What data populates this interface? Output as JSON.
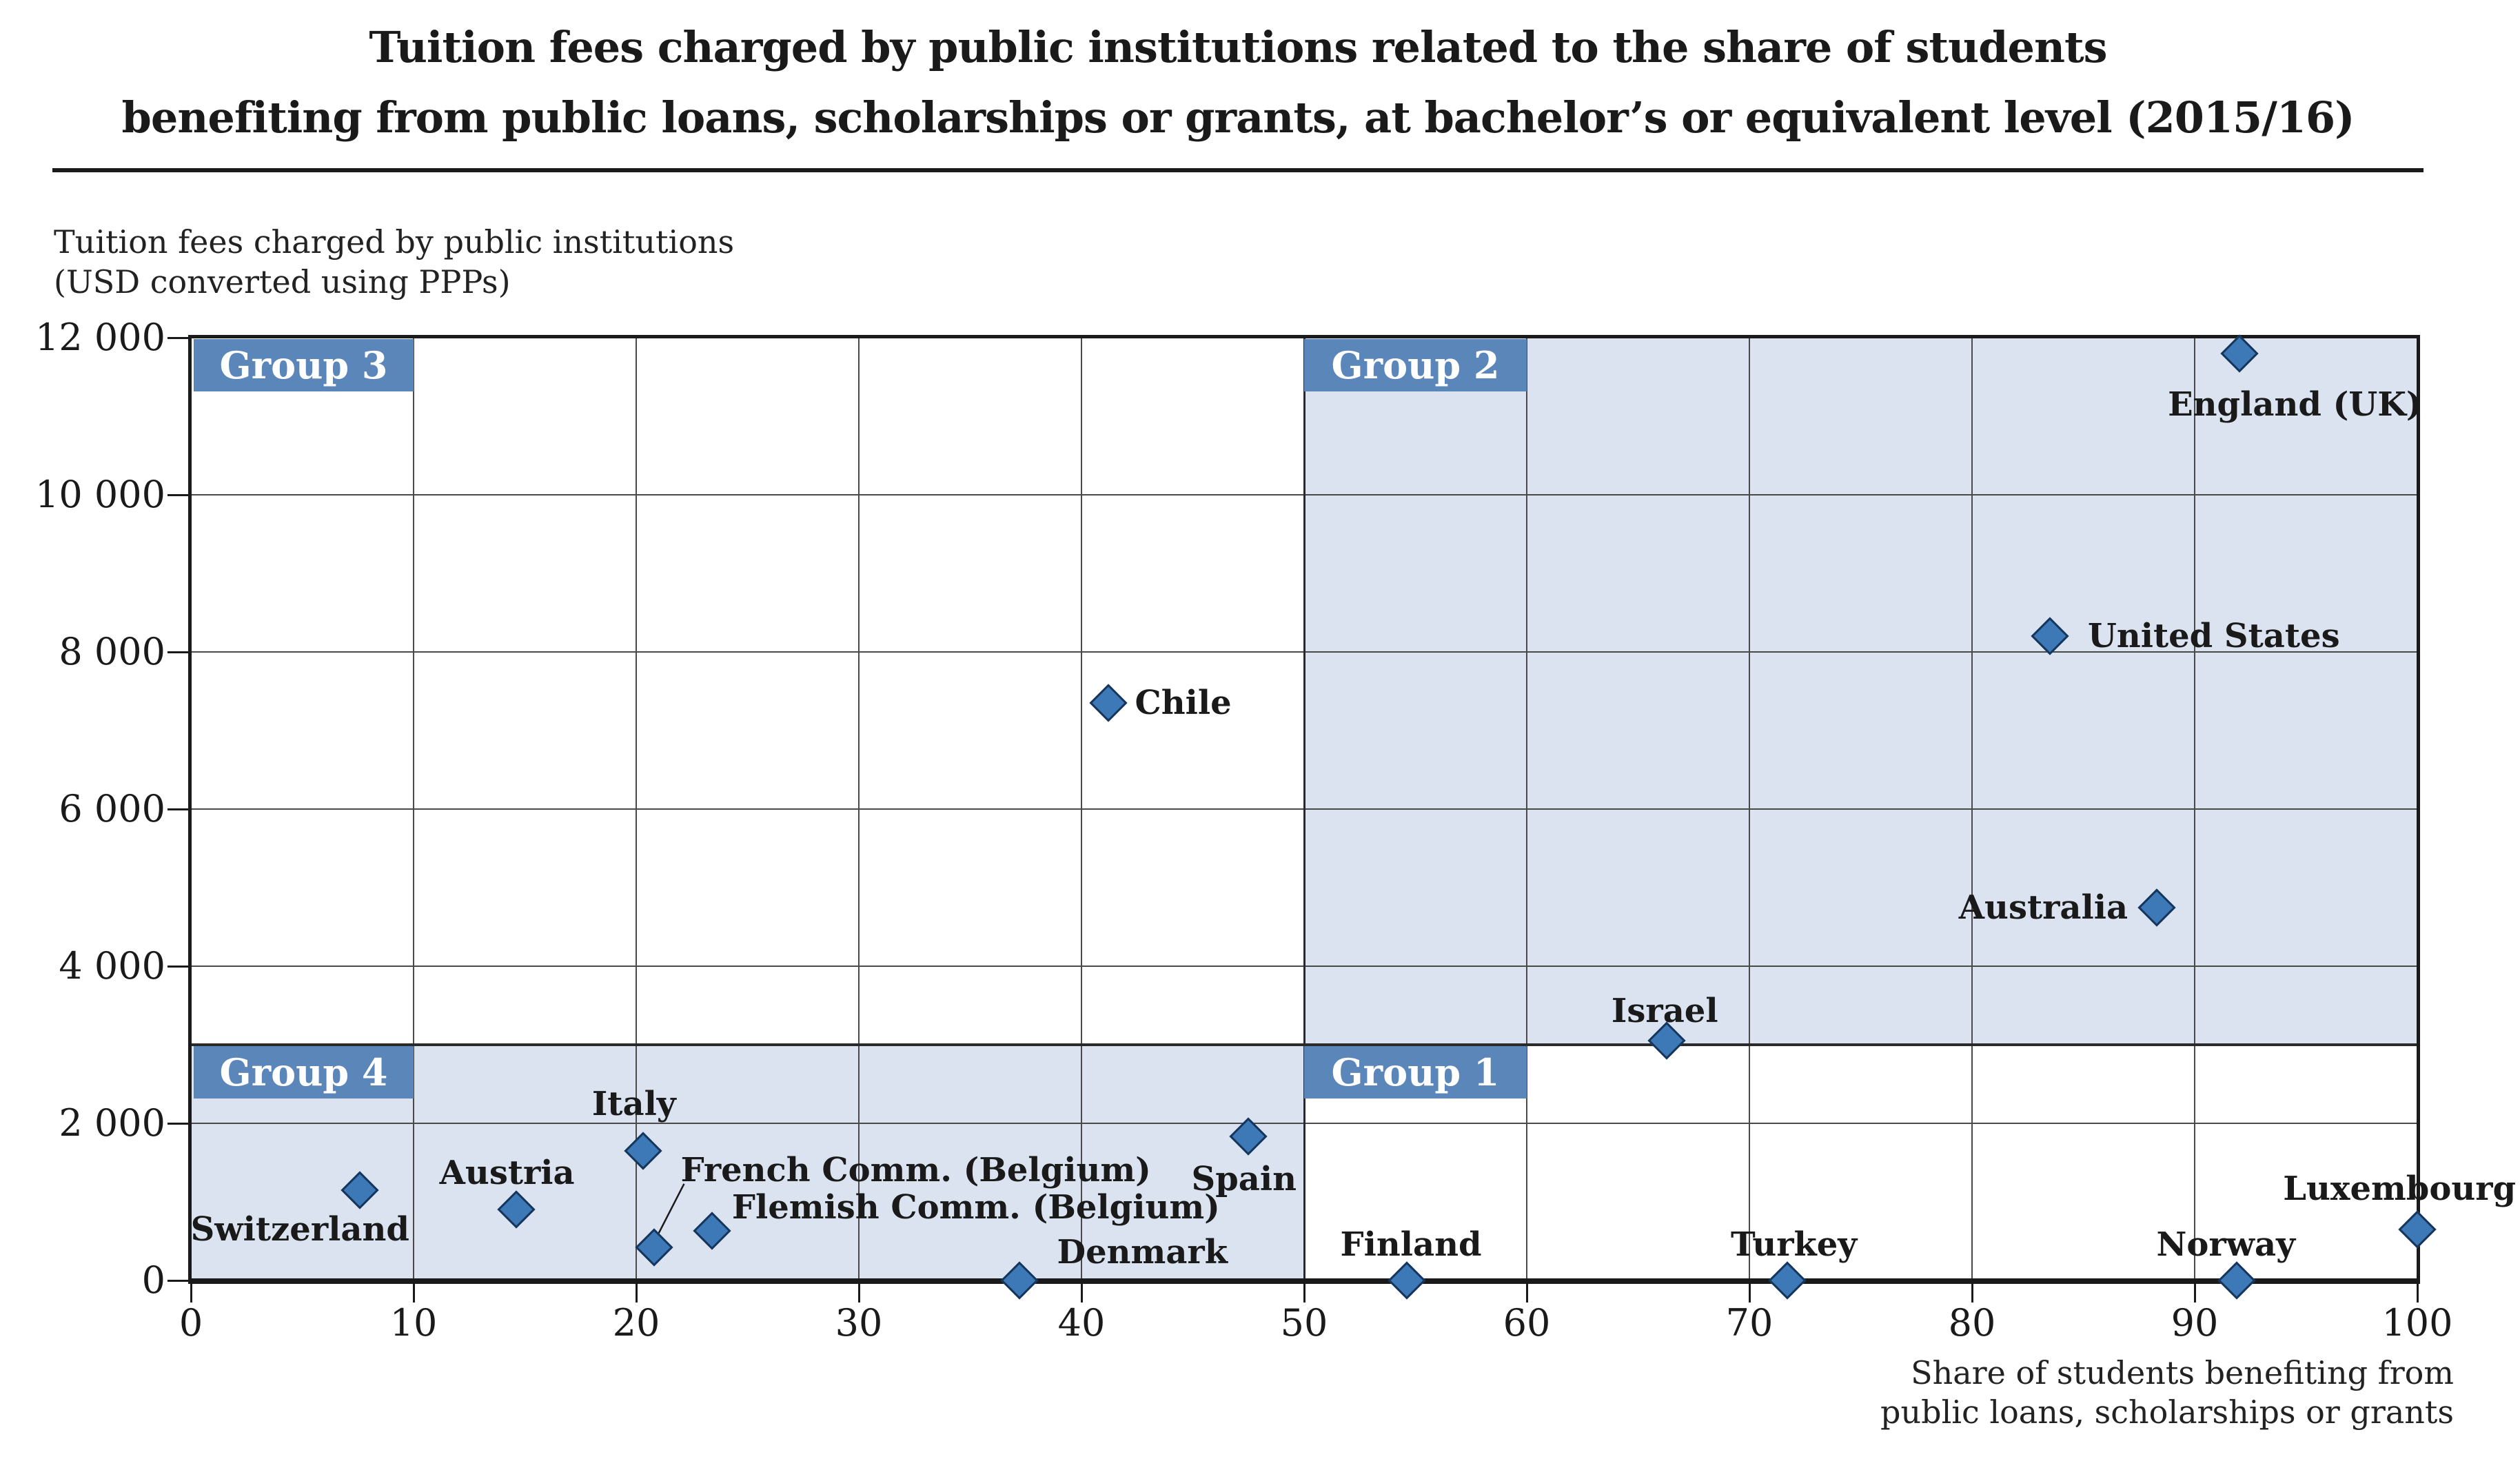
{
  "title": {
    "line1": "Tuition fees charged by public institutions related to the share of students",
    "line2": "benefiting from public loans, scholarships or grants, at bachelor’s or equivalent level (2015/16)"
  },
  "y_axis_caption": [
    "Tuition fees charged by public institutions",
    "(USD converted using PPPs)"
  ],
  "x_axis_caption": [
    "Share of students benefiting from",
    "public loans, scholarships or grants"
  ],
  "colors": {
    "group_box_blue": "#5b86ba",
    "region_shade": "#dae3ef",
    "marker_fill": "#3d78b7",
    "marker_border": "#16365c",
    "grid_line": "#4a4a4a",
    "axis_line": "#1a1a1a",
    "text": "#1a1a1a"
  },
  "chart_data": {
    "type": "scatter",
    "title": "Tuition fees charged by public institutions related to the share of students benefiting from public loans, scholarships or grants, at bachelor’s or equivalent level (2015/16)",
    "xlabel": "Share of students benefiting from public loans, scholarships or grants",
    "ylabel": "Tuition fees charged by public institutions (USD converted using PPPs)",
    "xlim": [
      0,
      100
    ],
    "ylim": [
      0,
      12000
    ],
    "x_ticks": [
      0,
      10,
      20,
      30,
      40,
      50,
      60,
      70,
      80,
      90,
      100
    ],
    "y_ticks": [
      0,
      2000,
      4000,
      6000,
      8000,
      10000,
      12000
    ],
    "y_tick_labels": [
      "0",
      "2 000",
      "4 000",
      "6 000",
      "8 000",
      "10 000",
      "12 000"
    ],
    "grid": true,
    "legend": "none",
    "marker": "diamond",
    "divider_y": 3000,
    "divider_x": 50,
    "regions": [
      {
        "name": "Group 3",
        "x": [
          0,
          50
        ],
        "y": [
          3000,
          12000
        ],
        "shaded": false,
        "label_box_x": [
          0,
          10
        ]
      },
      {
        "name": "Group 2",
        "x": [
          50,
          100
        ],
        "y": [
          3000,
          12000
        ],
        "shaded": true,
        "label_box_x": [
          50,
          60
        ]
      },
      {
        "name": "Group 4",
        "x": [
          0,
          50
        ],
        "y": [
          0,
          3000
        ],
        "shaded": true,
        "label_box_x": [
          0,
          10
        ]
      },
      {
        "name": "Group 1",
        "x": [
          50,
          100
        ],
        "y": [
          0,
          3000
        ],
        "shaded": false,
        "label_box_x": [
          50,
          60
        ]
      }
    ],
    "points": [
      {
        "name": "England (UK)",
        "x": 92,
        "y": 11800,
        "label": {
          "mode": "center",
          "x": 94.5,
          "y": 11150
        }
      },
      {
        "name": "United States",
        "x": 83.5,
        "y": 8200,
        "label": {
          "mode": "left",
          "x": 85.2,
          "y": 8200
        }
      },
      {
        "name": "Australia",
        "x": 88.3,
        "y": 4750,
        "label": {
          "mode": "right",
          "x": 87.0,
          "y": 4750
        }
      },
      {
        "name": "Israel",
        "x": 66.3,
        "y": 3050,
        "label": {
          "mode": "center",
          "x": 66.2,
          "y": 3430
        }
      },
      {
        "name": "Chile",
        "x": 41.2,
        "y": 7350,
        "label": {
          "mode": "left",
          "x": 42.4,
          "y": 7350
        }
      },
      {
        "name": "Spain",
        "x": 47.5,
        "y": 1830,
        "label": {
          "mode": "center",
          "x": 47.3,
          "y": 1290
        }
      },
      {
        "name": "Italy",
        "x": 20.3,
        "y": 1650,
        "label": {
          "mode": "center",
          "x": 19.9,
          "y": 2250
        }
      },
      {
        "name": "Switzerland",
        "x": 7.6,
        "y": 1150,
        "label": {
          "mode": "center",
          "x": 4.9,
          "y": 650
        }
      },
      {
        "name": "Austria",
        "x": 14.6,
        "y": 900,
        "label": {
          "mode": "center",
          "x": 14.2,
          "y": 1370
        }
      },
      {
        "name": "French Comm. (Belgium)",
        "x": 20.8,
        "y": 420,
        "label": {
          "mode": "left",
          "x": 22.0,
          "y": 1400
        }
      },
      {
        "name": "Flemish Comm. (Belgium)",
        "x": 23.4,
        "y": 630,
        "label": {
          "mode": "left",
          "x": 24.3,
          "y": 930
        }
      },
      {
        "name": "Denmark",
        "x": 37.2,
        "y": 0,
        "label": {
          "mode": "left",
          "x": 38.9,
          "y": 360
        }
      },
      {
        "name": "Finland",
        "x": 54.6,
        "y": 0,
        "label": {
          "mode": "center",
          "x": 54.8,
          "y": 460
        }
      },
      {
        "name": "Turkey",
        "x": 71.7,
        "y": 0,
        "label": {
          "mode": "center",
          "x": 72.0,
          "y": 460
        }
      },
      {
        "name": "Norway",
        "x": 91.9,
        "y": 0,
        "label": {
          "mode": "center",
          "x": 91.4,
          "y": 460
        }
      },
      {
        "name": "Luxembourg",
        "x": 100,
        "y": 650,
        "label": {
          "mode": "center",
          "x": 99.2,
          "y": 1170
        }
      }
    ],
    "leader_line": {
      "from": [
        22.15,
        1230
      ],
      "to": [
        20.9,
        540
      ],
      "point": "French Comm. (Belgium)"
    }
  }
}
